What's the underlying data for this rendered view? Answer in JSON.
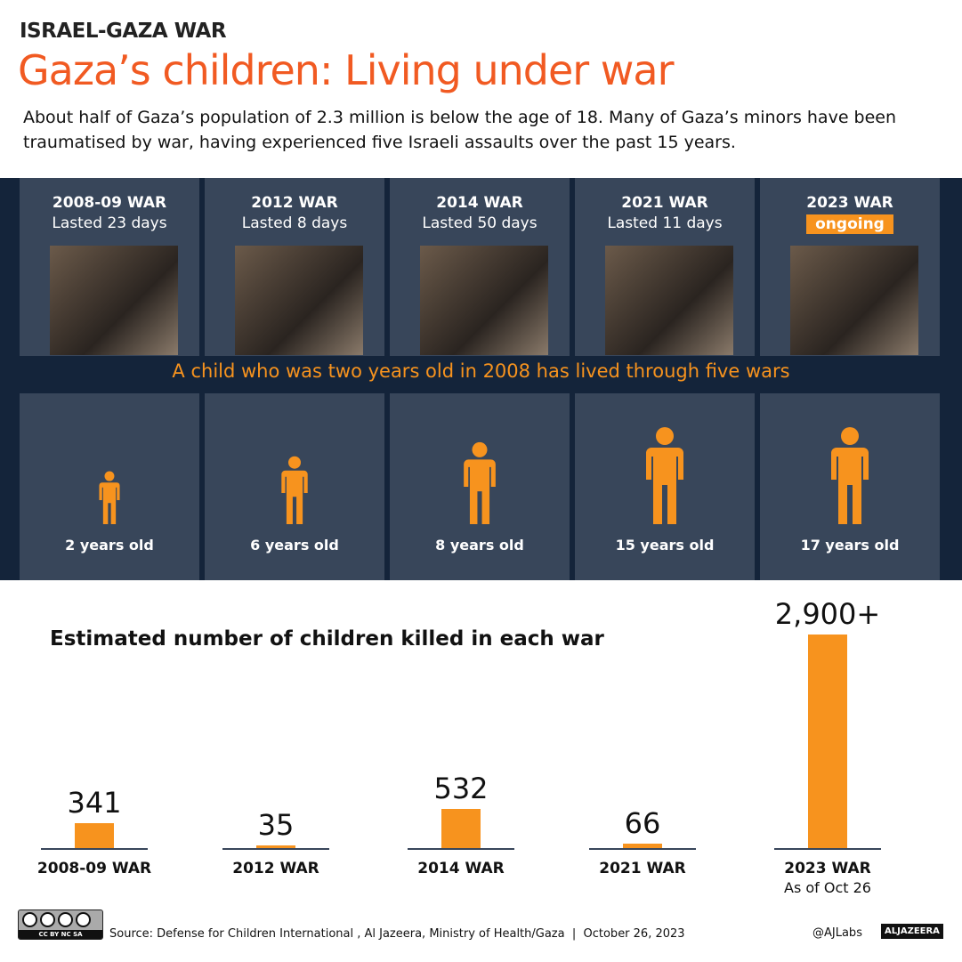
{
  "header": {
    "kicker": "ISRAEL-GAZA WAR",
    "title": "Gaza’s children: Living under war",
    "intro": "About half of Gaza’s population of 2.3 million is below the age of 18. Many of Gaza’s minors have been traumatised by war, having experienced five Israeli assaults over the past 15 years."
  },
  "wars": [
    {
      "name": "2008-09 WAR",
      "duration": "Lasted 23 days",
      "age": "2 years old"
    },
    {
      "name": "2012 WAR",
      "duration": "Lasted 8 days",
      "age": "6 years old"
    },
    {
      "name": "2014 WAR",
      "duration": "Lasted 50 days",
      "age": "8 years old"
    },
    {
      "name": "2021 WAR",
      "duration": "Lasted 11 days",
      "age": "15 years old"
    },
    {
      "name": "2023 WAR",
      "duration": "ongoing",
      "age": "17 years old"
    }
  ],
  "banner": "A child who was two years old in 2008 has lived through five wars",
  "colors": {
    "accent": "#f7931e",
    "title": "#f15a22",
    "panel": "#38465a",
    "band": "#14243a"
  },
  "chart_data": {
    "type": "bar",
    "title": "Estimated number of children killed in each war",
    "categories": [
      "2008-09 WAR",
      "2012 WAR",
      "2014 WAR",
      "2021 WAR",
      "2023 WAR"
    ],
    "values": [
      341,
      35,
      532,
      66,
      2900
    ],
    "value_labels": [
      "341",
      "35",
      "532",
      "66",
      "2,900+"
    ],
    "notes": {
      "2023 WAR": "As of Oct 26"
    }
  },
  "footer": {
    "source": "Source: Defense for Children International , Al Jazeera, Ministry of Health/Gaza  |  October 26, 2023",
    "handle": "@AJLabs",
    "logo": "ALJAZEERA",
    "license": "CC BY NC SA"
  }
}
